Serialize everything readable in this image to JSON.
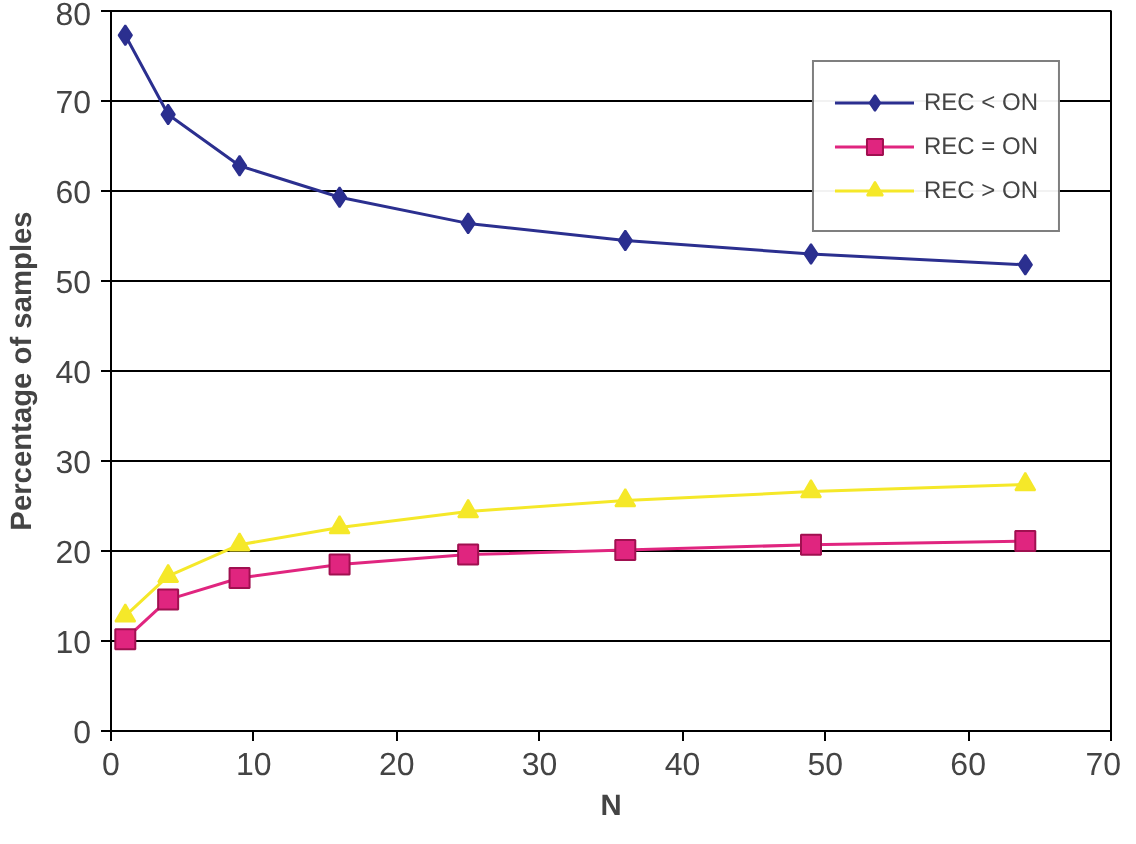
{
  "chart_data": {
    "type": "line",
    "xlabel": "N",
    "ylabel": "Percentage of samples",
    "x": [
      1,
      4,
      9,
      16,
      25,
      36,
      49,
      64
    ],
    "xlim": [
      0,
      70
    ],
    "xticks": [
      0,
      10,
      20,
      30,
      40,
      50,
      60,
      70
    ],
    "ylim": [
      0,
      80
    ],
    "yticks": [
      0,
      10,
      20,
      30,
      40,
      50,
      60,
      70,
      80
    ],
    "grid": "y",
    "legend": "top right",
    "series": [
      {
        "name": "REC < ON",
        "color": "#2b2f8f",
        "marker": "diamond",
        "values": [
          77.3,
          68.5,
          62.8,
          59.3,
          56.4,
          54.5,
          53.0,
          51.8
        ]
      },
      {
        "name": "REC = ON",
        "color": "#e0257f",
        "marker": "square",
        "values": [
          10.2,
          14.6,
          17.0,
          18.5,
          19.6,
          20.1,
          20.7,
          21.1
        ]
      },
      {
        "name": "REC > ON",
        "color": "#f5e829",
        "marker": "triangle",
        "values": [
          12.8,
          17.2,
          20.7,
          22.6,
          24.4,
          25.6,
          26.6,
          27.4
        ]
      }
    ]
  }
}
